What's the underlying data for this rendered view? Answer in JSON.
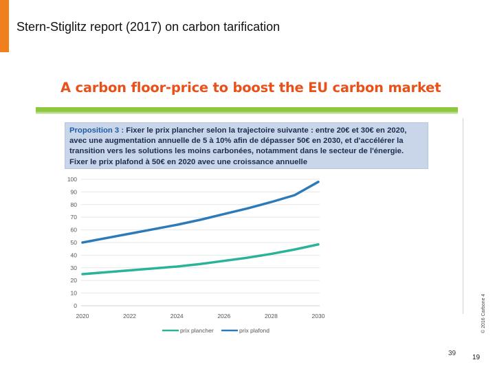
{
  "header": {
    "title": "Stern-Stiglitz report (2017) on carbon tarification"
  },
  "slide": {
    "heading": "A carbon floor-price to boost the EU carbon market"
  },
  "proposition": {
    "label": "Proposition 3 :",
    "text": " Fixer le prix plancher selon la trajectoire suivante : entre 20€ et 30€ en 2020, avec une augmentation annuelle de 5 à 10% afin de dépasser 50€ en 2030, et d'accélérer la transition vers les solutions les moins carbonées, notamment dans le secteur de l'énergie. Fixer le prix plafond à 50€ en 2020 avec une croissance annuelle"
  },
  "copyright": "© 2016 Carbone 4",
  "page_numbers": {
    "inner": "39",
    "outer": "19"
  },
  "colors": {
    "accent_orange": "#f07f1e",
    "heading_red": "#e8511a",
    "rule_green": "#8ec63f",
    "floor_green": "#2bb39a",
    "ceiling_blue": "#2d7ab8"
  },
  "chart_data": {
    "type": "line",
    "x": [
      2020,
      2021,
      2022,
      2023,
      2024,
      2025,
      2026,
      2027,
      2028,
      2029,
      2030
    ],
    "xticks": [
      "2020",
      "2022",
      "2024",
      "2026",
      "2028",
      "2030"
    ],
    "yticks": [
      "0",
      "10",
      "20",
      "30",
      "40",
      "50",
      "60",
      "70",
      "80",
      "90",
      "100"
    ],
    "ylim": [
      0,
      100
    ],
    "xlim": [
      2020,
      2030
    ],
    "series": [
      {
        "name": "prix plancher",
        "color": "#2bb39a",
        "values": [
          25,
          26.5,
          28,
          29.5,
          31,
          33,
          35.5,
          38,
          41,
          44.5,
          48.5
        ]
      },
      {
        "name": "prix plafond",
        "color": "#2d7ab8",
        "values": [
          50,
          53.5,
          57,
          60.5,
          64,
          68,
          72.5,
          77,
          82,
          87.5,
          98
        ]
      }
    ],
    "legend_position": "bottom-left",
    "grid": true
  }
}
